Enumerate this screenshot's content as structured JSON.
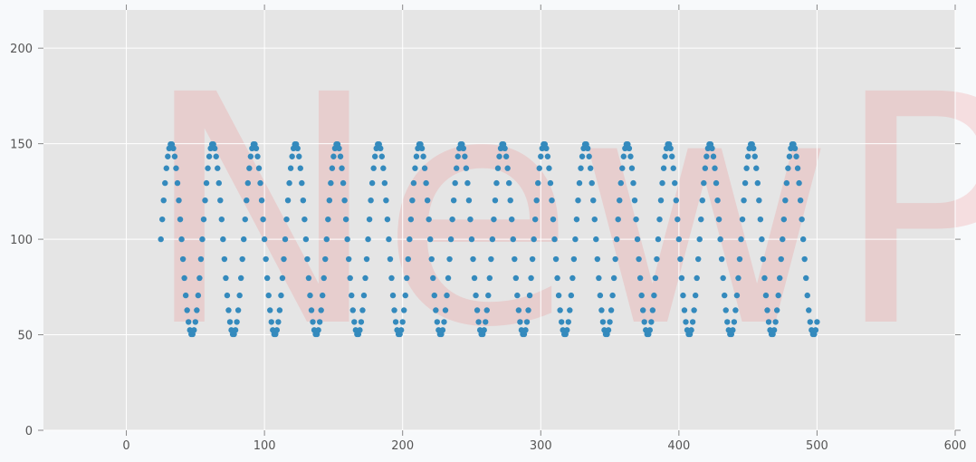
{
  "chart_data": {
    "type": "scatter",
    "title": "",
    "xlabel": "",
    "ylabel": "",
    "xlim": [
      -60,
      600
    ],
    "ylim": [
      0,
      220
    ],
    "x_ticks": [
      0,
      100,
      200,
      300,
      400,
      500,
      600
    ],
    "y_ticks": [
      0,
      50,
      100,
      150,
      200
    ],
    "grid": true,
    "background_color": "#e5e5e5",
    "grid_color": "#ffffff",
    "marker_color": "#348abd",
    "watermark": "NewPy",
    "series": [
      {
        "function": "y = 100 + 50*sin(0.2094*(x - 25))",
        "x_range": [
          25,
          500
        ],
        "x_step": 1,
        "amplitude": 50,
        "offset": 100,
        "period": 30
      }
    ]
  }
}
